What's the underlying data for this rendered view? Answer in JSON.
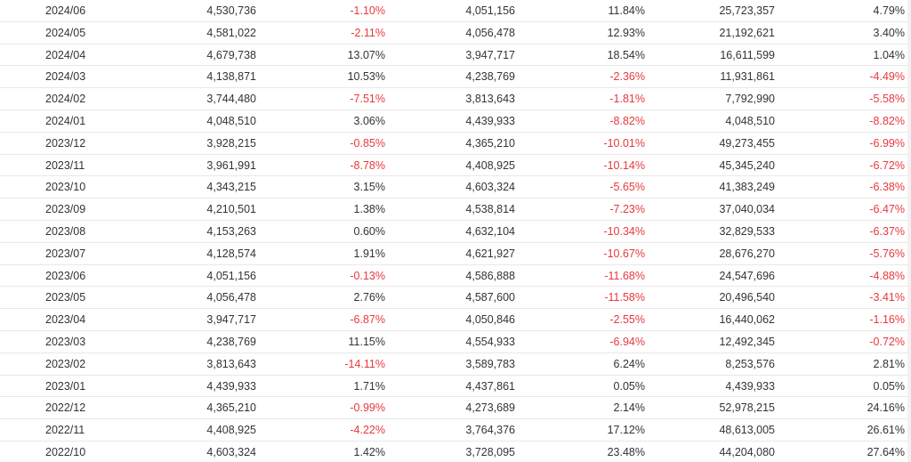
{
  "colors": {
    "positive": "#333333",
    "negative": "#e8383d",
    "divider": "#e8e8e8"
  },
  "rows": [
    [
      "2024/06",
      "4,530,736",
      "-1.10%",
      "4,051,156",
      "11.84%",
      "25,723,357",
      "4.79%"
    ],
    [
      "2024/05",
      "4,581,022",
      "-2.11%",
      "4,056,478",
      "12.93%",
      "21,192,621",
      "3.40%"
    ],
    [
      "2024/04",
      "4,679,738",
      "13.07%",
      "3,947,717",
      "18.54%",
      "16,611,599",
      "1.04%"
    ],
    [
      "2024/03",
      "4,138,871",
      "10.53%",
      "4,238,769",
      "-2.36%",
      "11,931,861",
      "-4.49%"
    ],
    [
      "2024/02",
      "3,744,480",
      "-7.51%",
      "3,813,643",
      "-1.81%",
      "7,792,990",
      "-5.58%"
    ],
    [
      "2024/01",
      "4,048,510",
      "3.06%",
      "4,439,933",
      "-8.82%",
      "4,048,510",
      "-8.82%"
    ],
    [
      "2023/12",
      "3,928,215",
      "-0.85%",
      "4,365,210",
      "-10.01%",
      "49,273,455",
      "-6.99%"
    ],
    [
      "2023/11",
      "3,961,991",
      "-8.78%",
      "4,408,925",
      "-10.14%",
      "45,345,240",
      "-6.72%"
    ],
    [
      "2023/10",
      "4,343,215",
      "3.15%",
      "4,603,324",
      "-5.65%",
      "41,383,249",
      "-6.38%"
    ],
    [
      "2023/09",
      "4,210,501",
      "1.38%",
      "4,538,814",
      "-7.23%",
      "37,040,034",
      "-6.47%"
    ],
    [
      "2023/08",
      "4,153,263",
      "0.60%",
      "4,632,104",
      "-10.34%",
      "32,829,533",
      "-6.37%"
    ],
    [
      "2023/07",
      "4,128,574",
      "1.91%",
      "4,621,927",
      "-10.67%",
      "28,676,270",
      "-5.76%"
    ],
    [
      "2023/06",
      "4,051,156",
      "-0.13%",
      "4,586,888",
      "-11.68%",
      "24,547,696",
      "-4.88%"
    ],
    [
      "2023/05",
      "4,056,478",
      "2.76%",
      "4,587,600",
      "-11.58%",
      "20,496,540",
      "-3.41%"
    ],
    [
      "2023/04",
      "3,947,717",
      "-6.87%",
      "4,050,846",
      "-2.55%",
      "16,440,062",
      "-1.16%"
    ],
    [
      "2023/03",
      "4,238,769",
      "11.15%",
      "4,554,933",
      "-6.94%",
      "12,492,345",
      "-0.72%"
    ],
    [
      "2023/02",
      "3,813,643",
      "-14.11%",
      "3,589,783",
      "6.24%",
      "8,253,576",
      "2.81%"
    ],
    [
      "2023/01",
      "4,439,933",
      "1.71%",
      "4,437,861",
      "0.05%",
      "4,439,933",
      "0.05%"
    ],
    [
      "2022/12",
      "4,365,210",
      "-0.99%",
      "4,273,689",
      "2.14%",
      "52,978,215",
      "24.16%"
    ],
    [
      "2022/11",
      "4,408,925",
      "-4.22%",
      "3,764,376",
      "17.12%",
      "48,613,005",
      "26.61%"
    ],
    [
      "2022/10",
      "4,603,324",
      "1.42%",
      "3,728,095",
      "23.48%",
      "44,204,080",
      "27.64%"
    ]
  ]
}
